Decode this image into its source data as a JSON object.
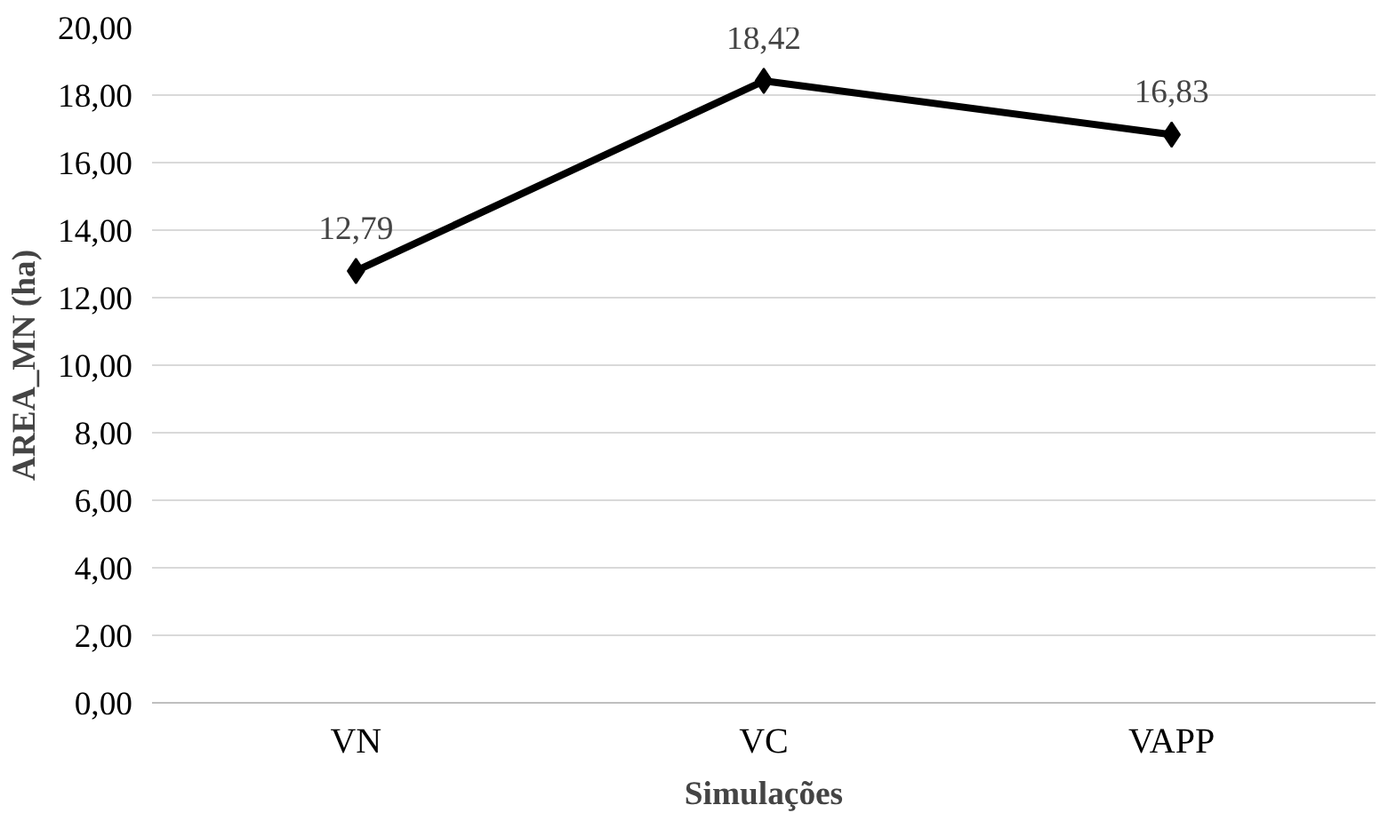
{
  "chart_data": {
    "type": "line",
    "xlabel": "Simulações",
    "ylabel": "AREA_MN (ha)",
    "categories": [
      "VN",
      "VC",
      "VAPP"
    ],
    "series": [
      {
        "color": "#000000",
        "values": [
          12.79,
          18.42,
          16.83
        ]
      }
    ],
    "value_labels": [
      "12,79",
      "18,42",
      "16,83"
    ],
    "ylim": [
      0,
      20
    ],
    "yticks": [
      {
        "value": 0,
        "label": "0,00"
      },
      {
        "value": 2,
        "label": "2,00"
      },
      {
        "value": 4,
        "label": "4,00"
      },
      {
        "value": 6,
        "label": "6,00"
      },
      {
        "value": 8,
        "label": "8,00"
      },
      {
        "value": 10,
        "label": "10,00"
      },
      {
        "value": 12,
        "label": "12,00"
      },
      {
        "value": 14,
        "label": "14,00"
      },
      {
        "value": 16,
        "label": "16,00"
      },
      {
        "value": 18,
        "label": "18,00"
      },
      {
        "value": 20,
        "label": "20,00"
      }
    ],
    "grid": "y",
    "marker": "diamond",
    "line_style": "solid"
  }
}
